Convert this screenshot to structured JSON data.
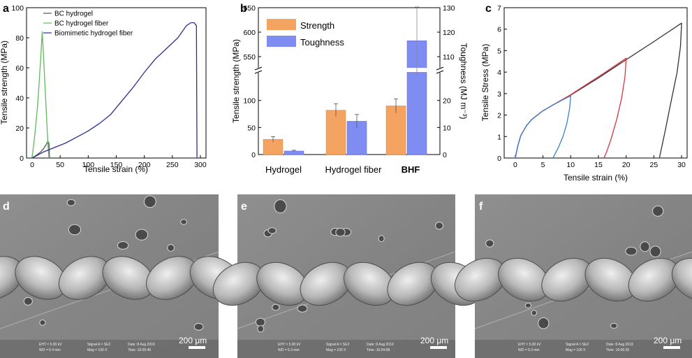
{
  "panels": {
    "a": "a",
    "b": "b",
    "c": "c",
    "d": "d",
    "e": "e",
    "f": "f"
  },
  "chart_data": [
    {
      "type": "line",
      "xlabel": "Tensile strain (%)",
      "ylabel": "Tensile strength (MPa)",
      "xlim": [
        -10,
        310
      ],
      "ylim": [
        0,
        100
      ],
      "xticks": [
        0,
        50,
        100,
        150,
        200,
        250,
        300
      ],
      "yticks": [
        0,
        20,
        40,
        60,
        80,
        100
      ],
      "legend": "top-left",
      "series": [
        {
          "name": "BC hydrogel",
          "color": "#555555",
          "x": [
            0,
            5,
            10,
            15,
            20,
            25,
            28,
            30,
            31
          ],
          "y": [
            0,
            1.2,
            2.5,
            4,
            6,
            9,
            11,
            10,
            0
          ]
        },
        {
          "name": "BC hydrogel fiber",
          "color": "#5fb95f",
          "x": [
            0,
            5,
            10,
            15,
            18,
            20,
            24,
            28,
            30
          ],
          "y": [
            0,
            16,
            36,
            65,
            84,
            70,
            40,
            10,
            0
          ]
        },
        {
          "name": "Biomimetic hydrogel fiber",
          "color": "#2c2f8f",
          "x": [
            0,
            20,
            40,
            60,
            80,
            100,
            120,
            140,
            160,
            180,
            200,
            220,
            240,
            260,
            275,
            283,
            289,
            293,
            294
          ],
          "y": [
            0,
            4,
            7,
            10,
            14,
            18,
            23,
            29,
            38,
            47,
            57,
            66,
            73,
            80,
            88,
            90,
            90,
            88,
            0
          ]
        }
      ]
    },
    {
      "type": "bar",
      "categories": [
        "Hydrogel",
        "Hydrogel fiber",
        "BHF"
      ],
      "ylabel": "Tensile strength (MPa)",
      "y2label": "Toughness (MJ m⁻³)",
      "yticks_lower": [
        0,
        50,
        100
      ],
      "yticks_upper": [
        550,
        600,
        650
      ],
      "y2ticks_lower": [
        0,
        10,
        20
      ],
      "y2ticks_upper": [
        110,
        120,
        130
      ],
      "legend": "top-left",
      "series": [
        {
          "name": "Strength",
          "color": "#f4a460",
          "values": [
            28,
            82,
            90
          ],
          "errors": [
            5,
            12,
            13
          ]
        },
        {
          "name": "Toughness",
          "color": "#7f8cf2",
          "values": [
            1.3,
            12.3,
            116.5
          ],
          "errors": [
            0.3,
            2.5,
            6
          ]
        }
      ]
    },
    {
      "type": "line",
      "xlabel": "Tensile strain (%)",
      "ylabel": "Tensile Stress (MPa)",
      "xlim": [
        -2,
        31
      ],
      "ylim": [
        0,
        7
      ],
      "xticks": [
        0,
        5,
        10,
        15,
        20,
        25,
        30
      ],
      "yticks": [
        0,
        1,
        2,
        3,
        4,
        5,
        6,
        7
      ],
      "series": [
        {
          "color": "#333333",
          "x": [
            0,
            0.5,
            1,
            2,
            3,
            5,
            7,
            10,
            15,
            20,
            25,
            30,
            29.8,
            29.2,
            28,
            27,
            26
          ],
          "y": [
            0,
            0.6,
            1.05,
            1.5,
            1.8,
            2.2,
            2.5,
            2.93,
            3.73,
            4.58,
            5.42,
            6.28,
            5.2,
            4,
            2.5,
            1.2,
            0
          ]
        },
        {
          "color": "#d9343f",
          "x": [
            0,
            0.5,
            1,
            2,
            3,
            5,
            7,
            10,
            13,
            16,
            18,
            20,
            19.8,
            19.2,
            18.3,
            17.3,
            16.5,
            16
          ],
          "y": [
            0,
            0.6,
            1.05,
            1.5,
            1.8,
            2.2,
            2.5,
            2.95,
            3.45,
            3.95,
            4.3,
            4.65,
            3.8,
            2.8,
            1.8,
            0.9,
            0.3,
            0
          ]
        },
        {
          "color": "#3a7fd1",
          "x": [
            0,
            0.5,
            1,
            2,
            3,
            5,
            7,
            8.5,
            10,
            9.8,
            9.3,
            8.6,
            7.8,
            7.2,
            6.8
          ],
          "y": [
            0,
            0.6,
            1.05,
            1.5,
            1.8,
            2.2,
            2.5,
            2.7,
            2.9,
            2.3,
            1.6,
            1,
            0.5,
            0.2,
            0
          ]
        }
      ]
    }
  ],
  "sem": [
    {
      "scale_bar": "200 μm",
      "info": [
        "EHT = 5.00 kV",
        "WD = 5.4 mm",
        "Signal A = SE2",
        "Mag = 100 X",
        "Date :8 Aug 2019",
        "Time :16:05:46"
      ]
    },
    {
      "scale_bar": "200 μm",
      "info": [
        "EHT = 5.00 kV",
        "WD = 5.3 mm",
        "Signal A = SE2",
        "Mag = 100 X",
        "Date :8 Aug 2019",
        "Time :16:04:08"
      ]
    },
    {
      "scale_bar": "200 μm",
      "info": [
        "EHT = 5.00 kV",
        "WD = 5.3 mm",
        "Signal A = SE2",
        "Mag = 100 X",
        "Date :8 Aug 2019",
        "Time :16:06:35"
      ]
    }
  ]
}
